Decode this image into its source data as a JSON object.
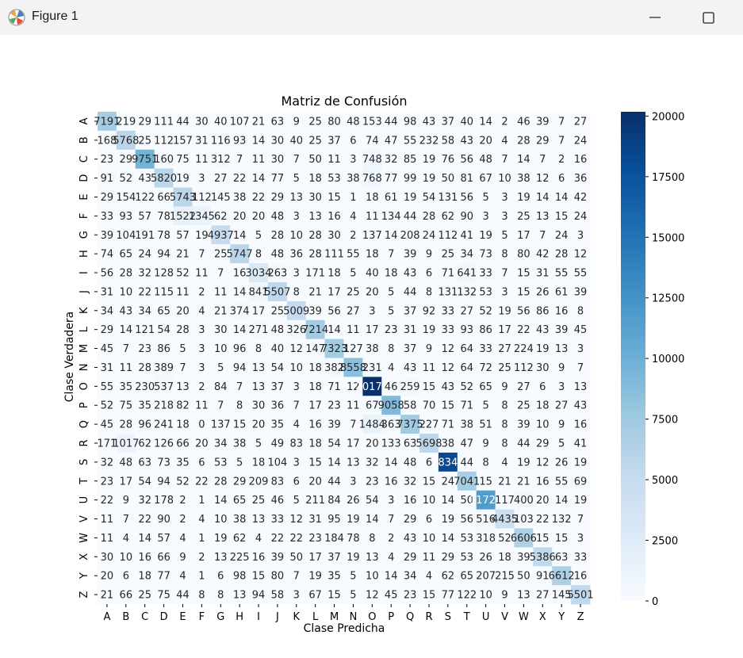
{
  "window": {
    "title": "Figure 1",
    "icon": "matplotlib-icon",
    "controls": [
      "minimize-icon",
      "maximize-icon"
    ]
  },
  "chart_data": {
    "type": "heatmap",
    "title": "Matriz de Confusión",
    "xlabel": "Clase Predicha",
    "ylabel": "Clase Verdadera",
    "x_categories": [
      "A",
      "B",
      "C",
      "D",
      "E",
      "F",
      "G",
      "H",
      "I",
      "J",
      "K",
      "L",
      "M",
      "N",
      "O",
      "P",
      "Q",
      "R",
      "S",
      "T",
      "U",
      "V",
      "W",
      "X",
      "Y",
      "Z"
    ],
    "y_categories": [
      "A",
      "B",
      "C",
      "D",
      "E",
      "F",
      "G",
      "H",
      "I",
      "J",
      "K",
      "L",
      "M",
      "N",
      "O",
      "P",
      "Q",
      "R",
      "S",
      "T",
      "U",
      "V",
      "W",
      "X",
      "Y",
      "Z"
    ],
    "cell_labels": [
      [
        "7191",
        "219",
        "29",
        "111",
        "44",
        "30",
        "40",
        "107",
        "21",
        "63",
        "9",
        "25",
        "80",
        "48",
        "153",
        "44",
        "98",
        "43",
        "37",
        "40",
        "14",
        "2",
        "46",
        "39",
        "7",
        "27"
      ],
      [
        "168",
        "5768",
        "25",
        "112",
        "157",
        "31",
        "116",
        "93",
        "14",
        "30",
        "40",
        "25",
        "37",
        "6",
        "74",
        "47",
        "55",
        "232",
        "58",
        "43",
        "20",
        "4",
        "28",
        "29",
        "7",
        "24"
      ],
      [
        "23",
        "29",
        "9751",
        "160",
        "75",
        "11",
        "312",
        "7",
        "11",
        "30",
        "7",
        "50",
        "11",
        "3",
        "748",
        "32",
        "85",
        "19",
        "76",
        "56",
        "48",
        "7",
        "14",
        "7",
        "2",
        "16"
      ],
      [
        "91",
        "52",
        "43",
        "5820",
        "19",
        "3",
        "27",
        "22",
        "14",
        "77",
        "5",
        "18",
        "53",
        "38",
        "768",
        "77",
        "99",
        "19",
        "50",
        "81",
        "67",
        "10",
        "38",
        "12",
        "6",
        "36"
      ],
      [
        "29",
        "154",
        "122",
        "66",
        "5743",
        "112",
        "145",
        "38",
        "22",
        "29",
        "13",
        "30",
        "15",
        "1",
        "18",
        "61",
        "19",
        "54",
        "131",
        "56",
        "5",
        "3",
        "19",
        "14",
        "14",
        "42"
      ],
      [
        "33",
        "93",
        "57",
        "78",
        "1522",
        "1345",
        "62",
        "20",
        "20",
        "48",
        "3",
        "13",
        "16",
        "4",
        "11",
        "134",
        "44",
        "28",
        "62",
        "90",
        "3",
        "3",
        "25",
        "13",
        "15",
        "24"
      ],
      [
        "39",
        "104",
        "191",
        "78",
        "57",
        "19",
        "4937",
        "14",
        "5",
        "28",
        "10",
        "28",
        "30",
        "2",
        "137",
        "14",
        "208",
        "24",
        "112",
        "41",
        "19",
        "5",
        "17",
        "7",
        "24",
        "3"
      ],
      [
        "74",
        "65",
        "24",
        "94",
        "21",
        "7",
        "25",
        "5747",
        "8",
        "48",
        "36",
        "28",
        "111",
        "55",
        "18",
        "7",
        "39",
        "9",
        "25",
        "34",
        "73",
        "8",
        "80",
        "42",
        "28",
        "12"
      ],
      [
        "56",
        "28",
        "32",
        "128",
        "52",
        "11",
        "7",
        "16",
        "3034",
        "263",
        "3",
        "171",
        "18",
        "5",
        "40",
        "18",
        "43",
        "6",
        "71",
        "641",
        "33",
        "7",
        "15",
        "31",
        "55",
        "55"
      ],
      [
        "31",
        "10",
        "22",
        "115",
        "11",
        "2",
        "11",
        "14",
        "841",
        "5507",
        "8",
        "21",
        "17",
        "25",
        "20",
        "5",
        "44",
        "8",
        "131",
        "132",
        "53",
        "3",
        "15",
        "26",
        "61",
        "39"
      ],
      [
        "34",
        "43",
        "34",
        "65",
        "20",
        "4",
        "21",
        "374",
        "17",
        "25",
        "5009",
        "39",
        "56",
        "27",
        "3",
        "5",
        "37",
        "92",
        "33",
        "27",
        "52",
        "19",
        "56",
        "86",
        "16",
        "8"
      ],
      [
        "29",
        "14",
        "121",
        "54",
        "28",
        "3",
        "30",
        "14",
        "271",
        "48",
        "326",
        "7214",
        "14",
        "11",
        "17",
        "23",
        "31",
        "19",
        "33",
        "93",
        "86",
        "17",
        "22",
        "43",
        "39",
        "45"
      ],
      [
        "45",
        "7",
        "23",
        "86",
        "5",
        "3",
        "10",
        "96",
        "8",
        "40",
        "12",
        "147",
        "7323",
        "127",
        "38",
        "8",
        "37",
        "9",
        "12",
        "64",
        "33",
        "27",
        "224",
        "19",
        "13",
        "3"
      ],
      [
        "31",
        "11",
        "28",
        "389",
        "7",
        "3",
        "5",
        "94",
        "13",
        "54",
        "10",
        "18",
        "382",
        "8558",
        "231",
        "4",
        "43",
        "11",
        "12",
        "64",
        "72",
        "25",
        "112",
        "30",
        "9",
        "7"
      ],
      [
        "55",
        "35",
        "230",
        "537",
        "13",
        "2",
        "84",
        "7",
        "13",
        "37",
        "3",
        "18",
        "71",
        "12",
        "20176",
        "46",
        "259",
        "15",
        "43",
        "52",
        "65",
        "9",
        "27",
        "6",
        "3",
        "13"
      ],
      [
        "52",
        "75",
        "35",
        "218",
        "82",
        "11",
        "7",
        "8",
        "30",
        "36",
        "7",
        "17",
        "23",
        "11",
        "67",
        "9058",
        "58",
        "70",
        "15",
        "71",
        "5",
        "8",
        "25",
        "18",
        "27",
        "43"
      ],
      [
        "45",
        "28",
        "96",
        "241",
        "18",
        "0",
        "137",
        "15",
        "20",
        "35",
        "4",
        "16",
        "39",
        "7",
        "1484",
        "363",
        "7375",
        "227",
        "71",
        "38",
        "51",
        "8",
        "39",
        "10",
        "9",
        "16"
      ],
      [
        "171",
        "1017",
        "62",
        "126",
        "66",
        "20",
        "34",
        "38",
        "5",
        "49",
        "83",
        "18",
        "54",
        "17",
        "20",
        "133",
        "63",
        "5698",
        "38",
        "47",
        "9",
        "8",
        "44",
        "29",
        "5",
        "41"
      ],
      [
        "32",
        "48",
        "63",
        "73",
        "35",
        "6",
        "53",
        "5",
        "18",
        "104",
        "3",
        "15",
        "14",
        "13",
        "32",
        "14",
        "48",
        "6",
        "18345",
        "44",
        "8",
        "4",
        "19",
        "12",
        "26",
        "19"
      ],
      [
        "23",
        "17",
        "54",
        "94",
        "52",
        "22",
        "28",
        "29",
        "209",
        "83",
        "6",
        "20",
        "44",
        "3",
        "23",
        "16",
        "32",
        "15",
        "24",
        "7041",
        "15",
        "21",
        "21",
        "16",
        "55",
        "69"
      ],
      [
        "22",
        "9",
        "32",
        "178",
        "2",
        "1",
        "14",
        "65",
        "25",
        "46",
        "5",
        "211",
        "84",
        "26",
        "54",
        "3",
        "16",
        "10",
        "14",
        "50",
        "11721",
        "117",
        "400",
        "20",
        "14",
        "19"
      ],
      [
        "11",
        "7",
        "22",
        "90",
        "2",
        "4",
        "10",
        "38",
        "13",
        "33",
        "12",
        "31",
        "95",
        "19",
        "14",
        "7",
        "29",
        "6",
        "19",
        "56",
        "516",
        "4435",
        "103",
        "22",
        "132",
        "7"
      ],
      [
        "11",
        "4",
        "14",
        "57",
        "4",
        "1",
        "19",
        "62",
        "4",
        "22",
        "22",
        "23",
        "184",
        "78",
        "8",
        "2",
        "43",
        "10",
        "14",
        "53",
        "318",
        "52",
        "6606",
        "15",
        "15",
        "3"
      ],
      [
        "30",
        "10",
        "16",
        "66",
        "9",
        "2",
        "13",
        "225",
        "16",
        "39",
        "50",
        "17",
        "37",
        "19",
        "13",
        "4",
        "29",
        "11",
        "29",
        "53",
        "26",
        "18",
        "39",
        "5386",
        "63",
        "33"
      ],
      [
        "20",
        "6",
        "18",
        "77",
        "4",
        "1",
        "6",
        "98",
        "15",
        "80",
        "7",
        "19",
        "35",
        "5",
        "10",
        "14",
        "34",
        "4",
        "62",
        "65",
        "207",
        "215",
        "50",
        "91",
        "6612",
        "16"
      ],
      [
        "21",
        "66",
        "25",
        "75",
        "44",
        "8",
        "8",
        "13",
        "94",
        "58",
        "3",
        "67",
        "15",
        "5",
        "12",
        "45",
        "23",
        "15",
        "77",
        "122",
        "10",
        "9",
        "13",
        "27",
        "145",
        "5501"
      ]
    ],
    "colorbar": {
      "colormap": "Blues",
      "range": [
        0,
        20176
      ],
      "ticks": [
        0,
        2500,
        5000,
        7500,
        10000,
        12500,
        15000,
        17500,
        20000
      ],
      "tick_labels": [
        "0",
        "2500",
        "5000",
        "7500",
        "10000",
        "12500",
        "15000",
        "17500",
        "20000"
      ]
    }
  }
}
